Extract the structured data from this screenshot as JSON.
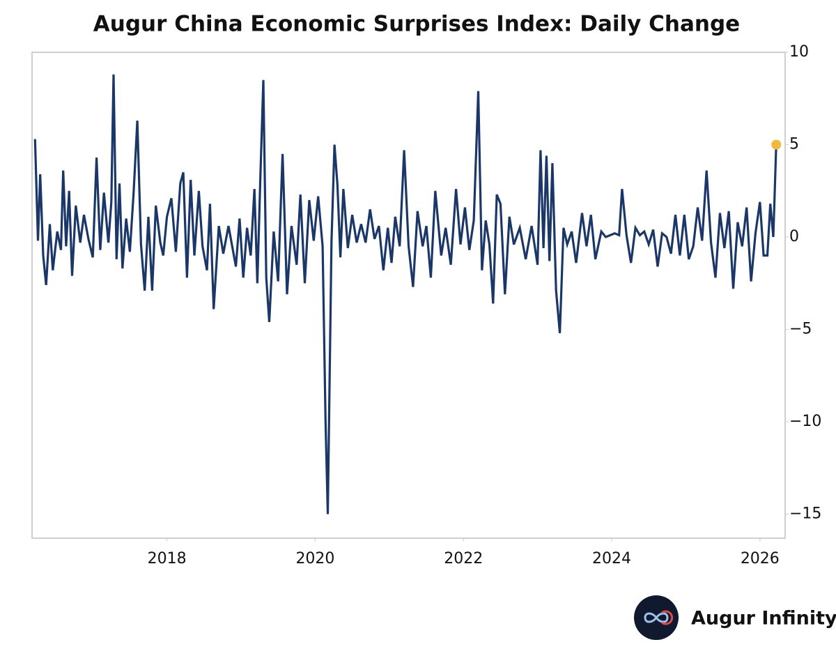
{
  "chart_data": {
    "type": "line",
    "title": "Augur China Economic Surprises Index: Daily Change",
    "brand": "Augur Infinity",
    "x": [
      2016.22,
      2016.26,
      2016.29,
      2016.33,
      2016.37,
      2016.42,
      2016.46,
      2016.52,
      2016.57,
      2016.6,
      2016.64,
      2016.68,
      2016.72,
      2016.77,
      2016.83,
      2016.88,
      2016.94,
      2017.0,
      2017.05,
      2017.1,
      2017.15,
      2017.21,
      2017.25,
      2017.28,
      2017.32,
      2017.36,
      2017.4,
      2017.45,
      2017.5,
      2017.55,
      2017.6,
      2017.65,
      2017.7,
      2017.75,
      2017.8,
      2017.85,
      2017.91,
      2017.95,
      2018.0,
      2018.06,
      2018.12,
      2018.18,
      2018.22,
      2018.27,
      2018.32,
      2018.37,
      2018.43,
      2018.48,
      2018.54,
      2018.58,
      2018.63,
      2018.7,
      2018.76,
      2018.83,
      2018.88,
      2018.93,
      2018.98,
      2019.03,
      2019.08,
      2019.13,
      2019.18,
      2019.22,
      2019.26,
      2019.3,
      2019.34,
      2019.38,
      2019.44,
      2019.5,
      2019.56,
      2019.62,
      2019.68,
      2019.75,
      2019.8,
      2019.86,
      2019.92,
      2019.98,
      2020.04,
      2020.1,
      2020.14,
      2020.17,
      2020.22,
      2020.26,
      2020.3,
      2020.34,
      2020.38,
      2020.44,
      2020.5,
      2020.56,
      2020.62,
      2020.68,
      2020.74,
      2020.8,
      2020.86,
      2020.92,
      2020.98,
      2021.03,
      2021.08,
      2021.14,
      2021.2,
      2021.26,
      2021.32,
      2021.38,
      2021.45,
      2021.5,
      2021.56,
      2021.62,
      2021.7,
      2021.76,
      2021.83,
      2021.9,
      2021.96,
      2022.02,
      2022.08,
      2022.14,
      2022.2,
      2022.25,
      2022.3,
      2022.35,
      2022.4,
      2022.45,
      2022.5,
      2022.56,
      2022.62,
      2022.68,
      2022.76,
      2022.84,
      2022.92,
      2023.0,
      2023.04,
      2023.08,
      2023.12,
      2023.16,
      2023.2,
      2023.25,
      2023.3,
      2023.35,
      2023.4,
      2023.46,
      2023.52,
      2023.6,
      2023.66,
      2023.72,
      2023.78,
      2023.86,
      2023.92,
      2023.98,
      2024.04,
      2024.1,
      2024.14,
      2024.2,
      2024.26,
      2024.32,
      2024.38,
      2024.44,
      2024.5,
      2024.56,
      2024.62,
      2024.68,
      2024.74,
      2024.8,
      2024.86,
      2024.92,
      2024.98,
      2025.04,
      2025.1,
      2025.16,
      2025.22,
      2025.28,
      2025.34,
      2025.4,
      2025.46,
      2025.52,
      2025.58,
      2025.64,
      2025.7,
      2025.76,
      2025.82,
      2025.88,
      2025.94,
      2026.0,
      2026.05,
      2026.1,
      2026.14,
      2026.18,
      2026.22
    ],
    "series": [
      {
        "color": "#1b3768",
        "marker_color": "#f0b93a",
        "values": [
          5.3,
          -0.2,
          3.4,
          -1.0,
          -2.6,
          0.7,
          -1.8,
          0.3,
          -0.7,
          3.6,
          -0.5,
          2.5,
          -2.1,
          1.7,
          -0.3,
          1.2,
          -0.1,
          -1.1,
          4.3,
          -0.7,
          2.4,
          -0.3,
          1.9,
          8.8,
          -1.2,
          2.9,
          -1.7,
          1.0,
          -0.8,
          2.4,
          6.3,
          -0.4,
          -2.9,
          1.1,
          -2.9,
          1.7,
          -0.3,
          -1.0,
          1.1,
          2.1,
          -0.8,
          2.9,
          3.5,
          -2.2,
          3.1,
          -1.0,
          2.5,
          -0.5,
          -1.8,
          1.8,
          -3.9,
          0.6,
          -0.9,
          0.6,
          -0.5,
          -1.6,
          1.0,
          -2.2,
          0.5,
          -1.0,
          2.6,
          -2.5,
          3.2,
          8.5,
          -2.2,
          -4.6,
          0.3,
          -2.4,
          4.5,
          -3.1,
          0.6,
          -1.5,
          2.3,
          -2.5,
          2.0,
          -0.2,
          2.2,
          -0.5,
          -10.0,
          -15.0,
          -0.3,
          5.0,
          2.8,
          -1.1,
          2.6,
          -0.6,
          1.2,
          -0.3,
          0.7,
          -0.3,
          1.5,
          -0.1,
          0.6,
          -1.8,
          0.5,
          -1.4,
          1.1,
          -0.5,
          4.7,
          -0.5,
          -2.7,
          1.4,
          -0.5,
          0.6,
          -2.2,
          2.5,
          -1.0,
          0.5,
          -1.5,
          2.6,
          -0.4,
          1.6,
          -0.7,
          0.9,
          7.9,
          -1.8,
          0.9,
          -0.4,
          -3.6,
          2.3,
          1.8,
          -3.1,
          1.1,
          -0.4,
          0.5,
          -1.2,
          0.6,
          -1.5,
          4.7,
          -0.6,
          4.4,
          -1.3,
          4.0,
          -2.9,
          -5.2,
          0.5,
          -0.4,
          0.3,
          -1.4,
          1.3,
          -0.5,
          1.2,
          -1.2,
          0.3,
          0.0,
          0.1,
          0.2,
          0.1,
          2.6,
          0.1,
          -1.4,
          0.5,
          0.1,
          0.3,
          -0.4,
          0.4,
          -1.6,
          0.2,
          0.0,
          -0.9,
          1.2,
          -1.0,
          1.2,
          -1.2,
          -0.5,
          1.6,
          -0.2,
          3.6,
          -0.3,
          -2.2,
          1.3,
          -0.6,
          1.4,
          -2.8,
          0.8,
          -0.5,
          1.6,
          -2.4,
          0.2,
          1.9,
          -1.0,
          -1.0,
          1.8,
          0.0,
          5.0
        ]
      }
    ],
    "xlim": [
      2016.18,
      2026.34
    ],
    "xticks": [
      2018,
      2020,
      2022,
      2024,
      2026
    ],
    "ylim": [
      -16.3,
      10
    ],
    "yticks": [
      {
        "value": -15,
        "label": "−15"
      },
      {
        "value": -10,
        "label": "−10"
      },
      {
        "value": -5,
        "label": "−5"
      },
      0,
      5,
      10
    ],
    "grid": false
  }
}
